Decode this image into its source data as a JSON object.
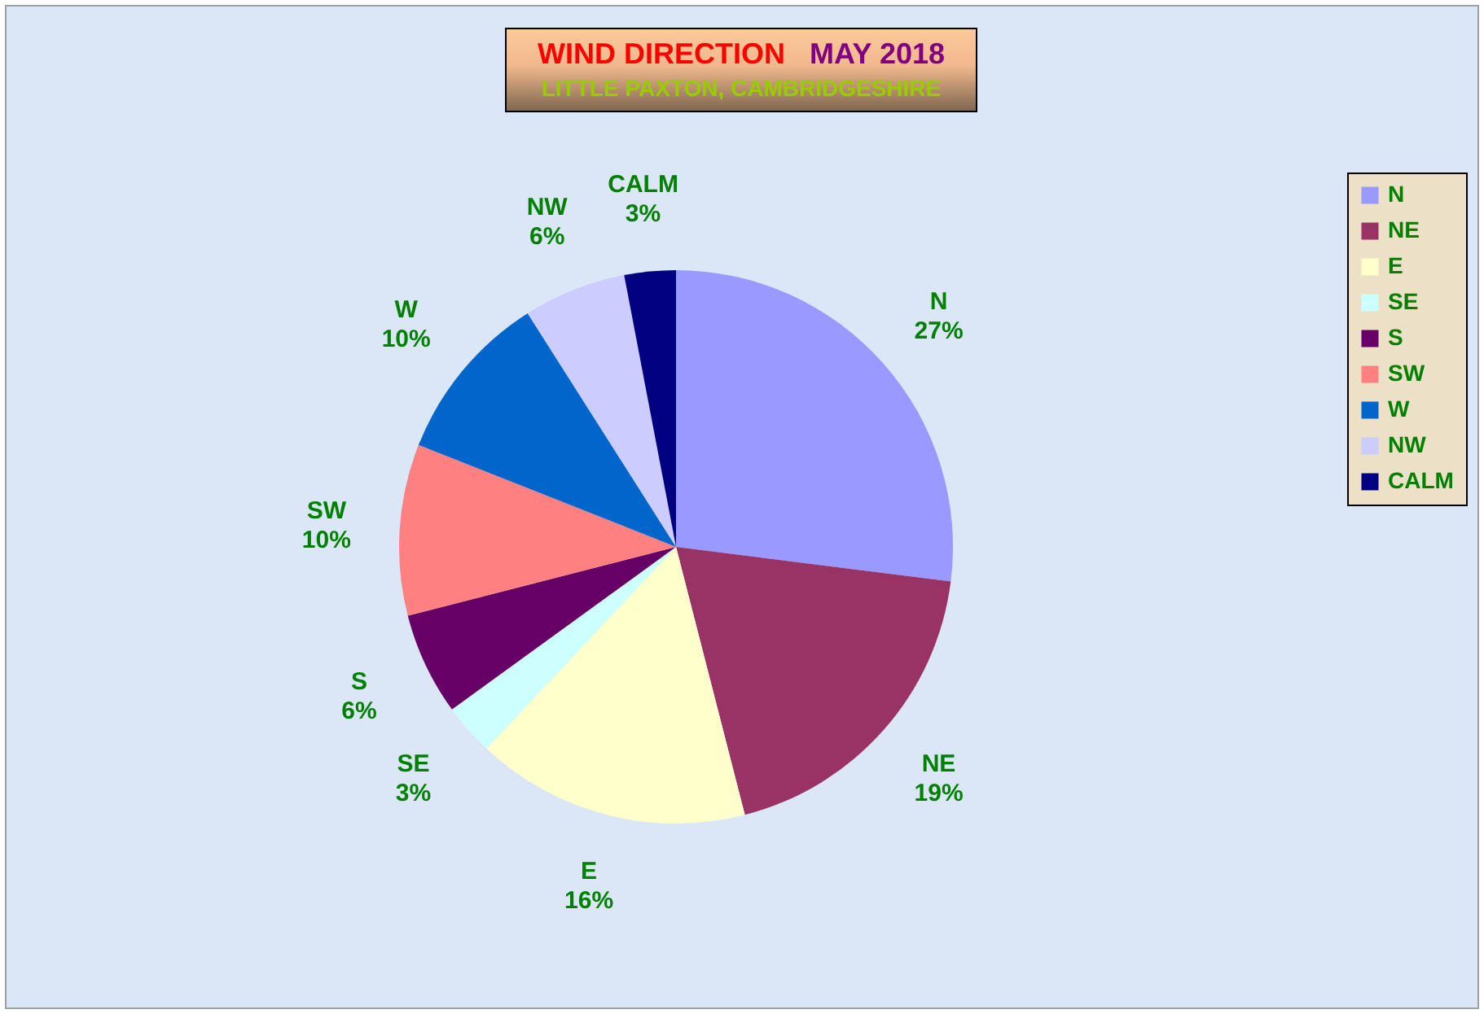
{
  "chart_data": {
    "type": "pie",
    "title": "WIND DIRECTION   MAY 2018",
    "subtitle": "LITTLE PAXTON, CAMBRIDGESHIRE",
    "categories": [
      "N",
      "NE",
      "E",
      "SE",
      "S",
      "SW",
      "W",
      "NW",
      "CALM"
    ],
    "values": [
      27,
      19,
      16,
      3,
      6,
      10,
      10,
      6,
      3
    ],
    "value_labels": [
      "27%",
      "19%",
      "16%",
      "3%",
      "6%",
      "10%",
      "10%",
      "6%",
      "3%"
    ],
    "colors": [
      "#9999ff",
      "#993366",
      "#ffffcc",
      "#ccffff",
      "#660066",
      "#ff8080",
      "#0066cc",
      "#ccccff",
      "#000080"
    ],
    "legend": "right"
  }
}
